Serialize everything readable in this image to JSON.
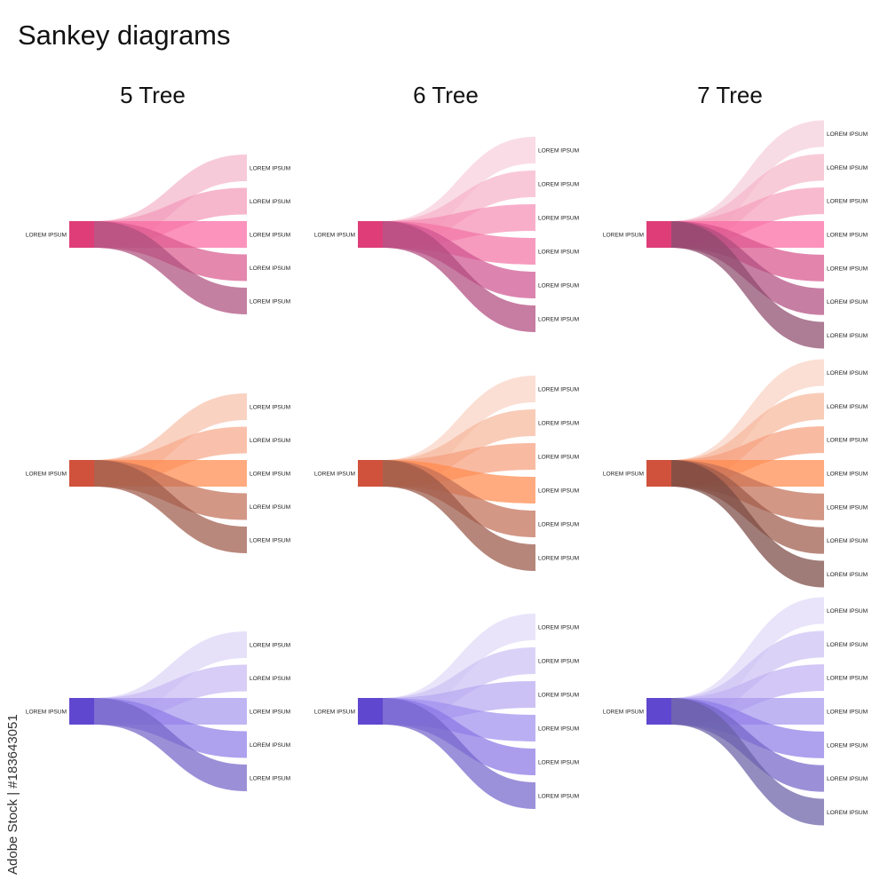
{
  "title": "Sankey diagrams",
  "columns": [
    {
      "title": "5 Tree",
      "branches": 5
    },
    {
      "title": "6 Tree",
      "branches": 6
    },
    {
      "title": "7 Tree",
      "branches": 7
    }
  ],
  "source_label": "LOREM IPSUM",
  "target_label": "LOREM IPSUM",
  "themes": [
    {
      "name": "pink",
      "source": "#d81b60",
      "targets": {
        "5": [
          "#f4b6cb",
          "#f39ab9",
          "#fa6aa2",
          "#d95a8e",
          "#ad4f7d"
        ],
        "6": [
          "#f7cfdc",
          "#f6b3c9",
          "#f58fb4",
          "#f375a5",
          "#cf5590",
          "#b2497e"
        ],
        "7": [
          "#f5cfdb",
          "#f5b7cb",
          "#f5a0bd",
          "#fa6aa2",
          "#d8548d",
          "#b04c7e",
          "#8e4a6c"
        ]
      }
    },
    {
      "name": "orange",
      "source": "#c8331a",
      "targets": {
        "5": [
          "#f7c0ab",
          "#f6a98a",
          "#ff8a4e",
          "#c26f57",
          "#9e5a4a"
        ],
        "6": [
          "#f9d3c4",
          "#f7b89d",
          "#f7a07e",
          "#ff8a4e",
          "#c26f57",
          "#9a5746"
        ],
        "7": [
          "#f9d3c4",
          "#f7b89d",
          "#f7a07e",
          "#ff8a4e",
          "#c26f57",
          "#9e5a4a",
          "#7a4a42"
        ]
      }
    },
    {
      "name": "purple",
      "source": "#4427c7",
      "targets": {
        "5": [
          "#dcd5f6",
          "#c8baf3",
          "#a898ef",
          "#8f7de8",
          "#7565c8"
        ],
        "6": [
          "#e0daf8",
          "#cdc2f4",
          "#b8a9f1",
          "#a190ee",
          "#8a77e5",
          "#7465cc"
        ],
        "7": [
          "#e0daf8",
          "#cdc2f4",
          "#c0b2f3",
          "#a898ef",
          "#8f7de8",
          "#7565c8",
          "#6a5fa6"
        ]
      }
    }
  ],
  "watermark": "Adobe Stock | #183643051"
}
